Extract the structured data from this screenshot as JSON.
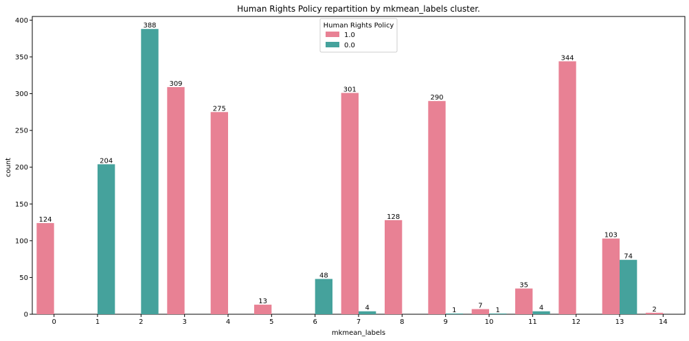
{
  "chart_data": {
    "type": "bar",
    "title": "Human Rights Policy repartition by mkmean_labels cluster.",
    "xlabel": "mkmean_labels",
    "ylabel": "count",
    "ylim": [
      0,
      405
    ],
    "yticks": [
      0,
      50,
      100,
      150,
      200,
      250,
      300,
      350,
      400
    ],
    "categories": [
      "0",
      "1",
      "2",
      "3",
      "4",
      "5",
      "6",
      "7",
      "8",
      "9",
      "10",
      "11",
      "12",
      "13",
      "14"
    ],
    "legend": {
      "title": "Human Rights Policy",
      "position": "top-center"
    },
    "series": [
      {
        "name": "1.0",
        "color": "#e88194",
        "values": [
          124,
          null,
          null,
          309,
          275,
          13,
          null,
          301,
          128,
          290,
          7,
          35,
          344,
          103,
          2
        ]
      },
      {
        "name": "0.0",
        "color": "#45a29c",
        "values": [
          null,
          204,
          388,
          null,
          null,
          null,
          48,
          4,
          null,
          1,
          1,
          4,
          null,
          74,
          null
        ]
      }
    ]
  }
}
